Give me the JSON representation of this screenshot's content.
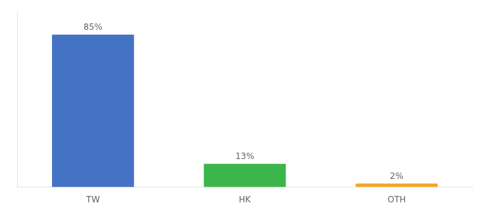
{
  "chart_data": {
    "type": "bar",
    "categories": [
      "TW",
      "HK",
      "OTH"
    ],
    "values": [
      85,
      13,
      2
    ],
    "value_labels": [
      "85%",
      "13%",
      "2%"
    ],
    "colors": [
      "#4472C4",
      "#3CB54A",
      "#F5A623"
    ],
    "ylim": [
      0,
      98
    ],
    "grid": false,
    "data_labels": true,
    "tick_labels": "x"
  }
}
